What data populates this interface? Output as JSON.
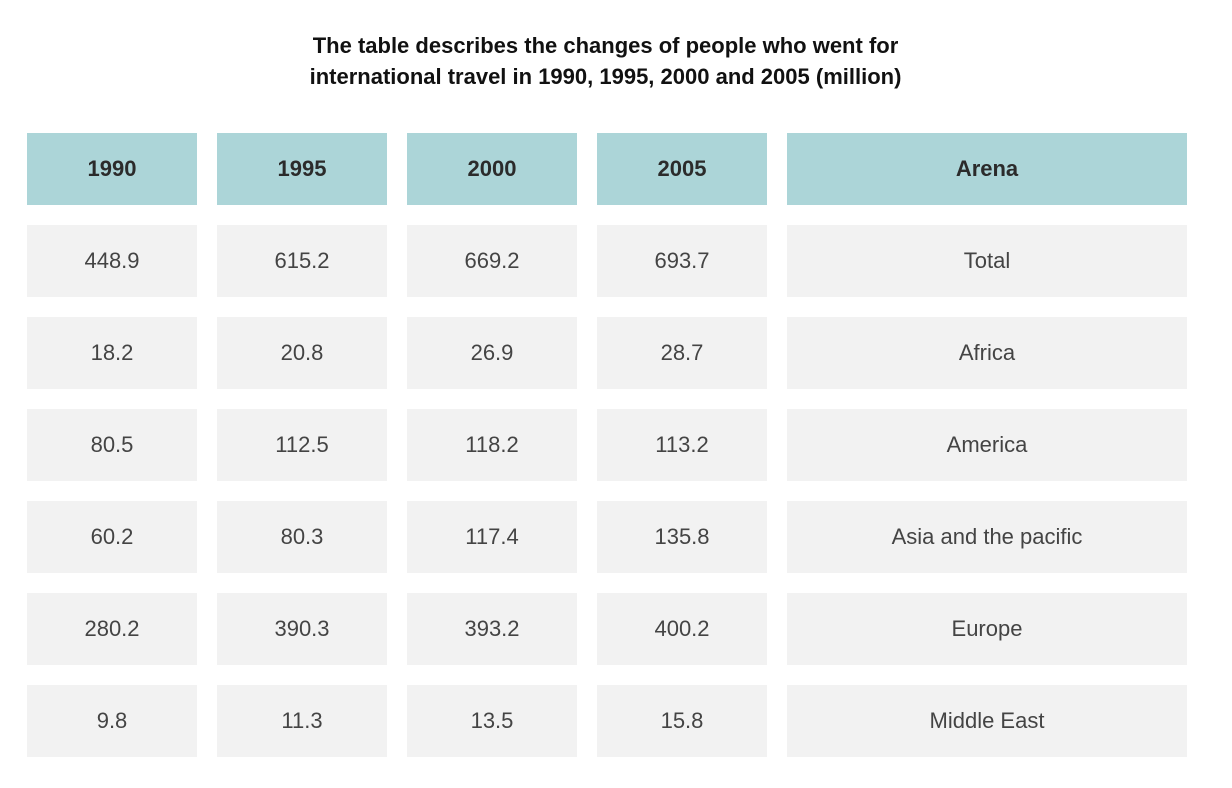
{
  "title": {
    "line1": "The table describes the changes of people who went for",
    "line2": "international travel in 1990, 1995, 2000 and 2005 (million)"
  },
  "chart_data": {
    "type": "table",
    "title": "The table describes the changes of people who went for international travel in 1990, 1995, 2000 and 2005 (million)",
    "columns": [
      "1990",
      "1995",
      "2000",
      "2005",
      "Arena"
    ],
    "rows": [
      [
        "448.9",
        "615.2",
        "669.2",
        "693.7",
        "Total"
      ],
      [
        "18.2",
        "20.8",
        "26.9",
        "28.7",
        "Africa"
      ],
      [
        "80.5",
        "112.5",
        "118.2",
        "113.2",
        "America"
      ],
      [
        "60.2",
        "80.3",
        "117.4",
        "135.8",
        "Asia and the pacific"
      ],
      [
        "280.2",
        "390.3",
        "393.2",
        "400.2",
        "Europe"
      ],
      [
        "9.8",
        "11.3",
        "13.5",
        "15.8",
        "Middle East"
      ]
    ]
  }
}
